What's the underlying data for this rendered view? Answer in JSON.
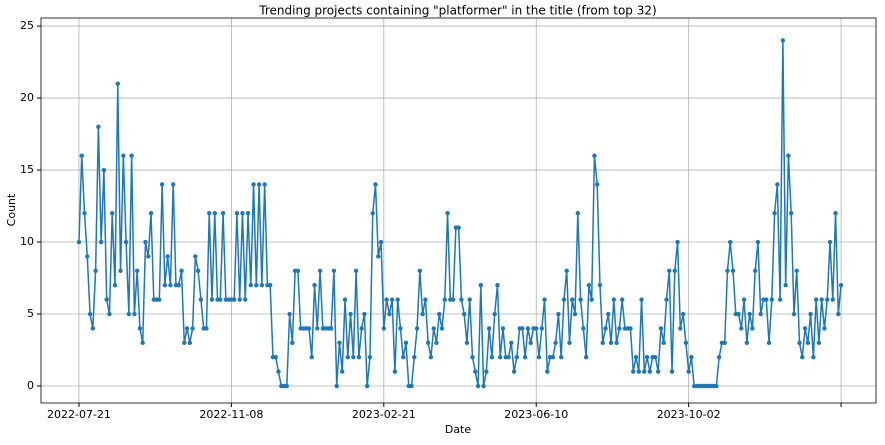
{
  "chart_data": {
    "type": "line",
    "title": "Trending projects containing \"platformer\" in the title (from top 32)",
    "x_label": "Date",
    "y_label": "Count",
    "xlim": [
      -13.7,
      287.6
    ],
    "xticks": [
      {
        "value": 0,
        "label": "2022-07-21"
      },
      {
        "value": 55,
        "label": "2022-11-08"
      },
      {
        "value": 110,
        "label": "2023-02-21"
      },
      {
        "value": 165,
        "label": "2023-06-10"
      },
      {
        "value": 220,
        "label": "2023-10-02"
      },
      {
        "value": 275,
        "label": null
      }
    ],
    "ylim": [
      -1.18,
      25.56
    ],
    "yticks": [
      0,
      5,
      10,
      15,
      20,
      25
    ],
    "grid": true,
    "series": [
      {
        "color": "#1f77b4",
        "values": [
          10,
          16,
          12,
          9,
          5,
          4,
          8,
          18,
          10,
          15,
          6,
          5,
          12,
          7,
          21,
          8,
          16,
          10,
          5,
          16,
          5,
          8,
          4,
          3,
          10,
          9,
          12,
          6,
          6,
          6,
          14,
          7,
          9,
          7,
          14,
          7,
          7,
          8,
          3,
          4,
          3,
          4,
          9,
          8,
          6,
          4,
          4,
          12,
          6,
          12,
          6,
          6,
          12,
          6,
          6,
          6,
          6,
          12,
          6,
          12,
          6,
          12,
          7,
          14,
          7,
          14,
          7,
          14,
          7,
          7,
          2,
          2,
          1,
          0,
          0,
          0,
          5,
          3,
          8,
          8,
          4,
          4,
          4,
          4,
          2,
          7,
          4,
          8,
          4,
          4,
          4,
          4,
          8,
          0,
          3,
          1,
          6,
          2,
          5,
          2,
          8,
          2,
          4,
          5,
          0,
          2,
          12,
          14,
          9,
          10,
          4,
          6,
          5,
          6,
          1,
          6,
          4,
          2,
          3,
          0,
          0,
          2,
          4,
          8,
          5,
          6,
          3,
          2,
          4,
          3,
          5,
          4,
          6,
          12,
          6,
          6,
          11,
          11,
          6,
          5,
          3,
          6,
          2,
          1,
          0,
          7,
          0,
          1,
          4,
          2,
          5,
          7,
          2,
          4,
          2,
          2,
          3,
          1,
          2,
          4,
          4,
          2,
          4,
          3,
          4,
          4,
          2,
          4,
          6,
          1,
          2,
          2,
          3,
          5,
          2,
          6,
          8,
          3,
          6,
          5,
          12,
          6,
          4,
          2,
          7,
          6,
          16,
          14,
          7,
          3,
          4,
          5,
          3,
          6,
          3,
          4,
          6,
          4,
          4,
          4,
          1,
          2,
          1,
          6,
          1,
          2,
          1,
          2,
          2,
          1,
          4,
          3,
          6,
          8,
          1,
          8,
          10,
          4,
          5,
          3,
          1,
          2,
          0,
          0,
          0,
          0,
          0,
          0,
          0,
          0,
          0,
          2,
          3,
          3,
          8,
          10,
          8,
          5,
          5,
          4,
          6,
          3,
          5,
          4,
          8,
          10,
          5,
          6,
          6,
          3,
          6,
          12,
          14,
          6,
          24,
          7,
          16,
          12,
          5,
          8,
          3,
          2,
          4,
          3,
          5,
          2,
          6,
          3,
          6,
          4,
          6,
          10,
          6,
          12,
          5,
          7
        ]
      }
    ]
  }
}
